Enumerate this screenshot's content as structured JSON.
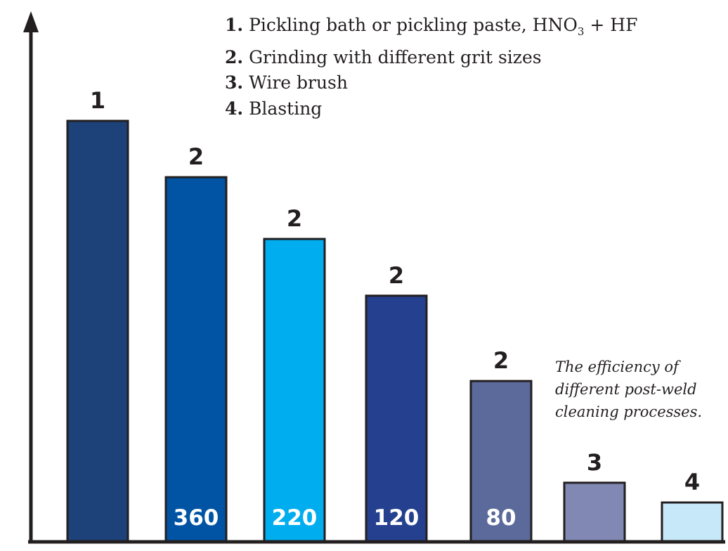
{
  "chart_data": {
    "type": "bar",
    "title": "",
    "xlabel": "",
    "ylabel": "",
    "grid": false,
    "axis_ticks": false,
    "categories": [
      "1",
      "2",
      "2",
      "2",
      "2",
      "3",
      "4"
    ],
    "inner_labels": [
      "",
      "360",
      "220",
      "120",
      "80",
      "",
      ""
    ],
    "values": [
      100,
      86.6,
      71.9,
      58.4,
      38.1,
      13.9,
      9.2
    ],
    "ylim": [
      0,
      125
    ],
    "colors": [
      "#1d4279",
      "#0054a3",
      "#00adef",
      "#24408e",
      "#5b6a9a",
      "#8088b3",
      "#c6e8f8"
    ],
    "legend": [
      {
        "num": "1.",
        "text": "Pickling bath or pickling paste, HNO",
        "sub": "3",
        "tail": " + HF"
      },
      {
        "num": "2.",
        "text": "Grinding with different grit sizes"
      },
      {
        "num": "3.",
        "text": "Wire brush"
      },
      {
        "num": "4.",
        "text": "Blasting"
      }
    ],
    "legend_position": "top-right",
    "annotation": [
      "The efficiency of",
      "different post-weld",
      "cleaning processes."
    ]
  }
}
